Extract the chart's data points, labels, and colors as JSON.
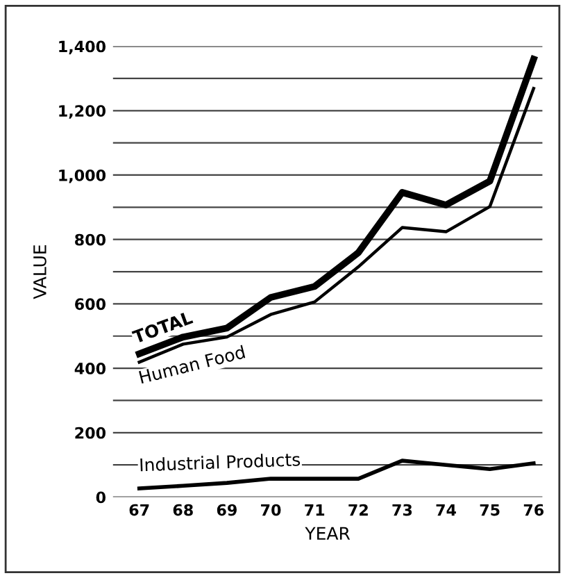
{
  "chart_data": {
    "type": "line",
    "xlabel": "YEAR",
    "ylabel": "VALUE",
    "categories": [
      "67",
      "68",
      "69",
      "70",
      "71",
      "72",
      "73",
      "74",
      "75",
      "76"
    ],
    "series": [
      {
        "name": "TOTAL",
        "color": "#000000",
        "values": [
          445,
          497,
          525,
          620,
          654,
          759,
          946,
          907,
          981,
          1360
        ]
      },
      {
        "name": "Human Food",
        "color": "#000000",
        "values": [
          419,
          475,
          497,
          567,
          606,
          715,
          837,
          824,
          902,
          1269
        ]
      },
      {
        "name": "Industrial Products",
        "color": "#000000",
        "values": [
          27,
          35,
          44,
          57,
          57,
          57,
          113,
          100,
          87,
          105
        ]
      }
    ],
    "ylim": [
      0,
      1400
    ],
    "yticks": [
      0,
      {
        "value": 100,
        "label": null
      },
      {
        "value": 200,
        "label": "200"
      },
      {
        "value": 300,
        "label": null
      },
      400,
      {
        "value": 500,
        "label": null
      },
      600,
      {
        "value": 700,
        "label": null
      },
      800,
      {
        "value": 900,
        "label": null
      },
      {
        "value": 1000,
        "label": "1,000"
      },
      {
        "value": 1100,
        "label": null
      },
      {
        "value": 1200,
        "label": "1,200"
      },
      {
        "value": 1300,
        "label": null
      },
      {
        "value": 1400,
        "label": "1,400"
      }
    ],
    "grid": "y",
    "legend": false,
    "marker": "none",
    "line_style": "solid"
  }
}
